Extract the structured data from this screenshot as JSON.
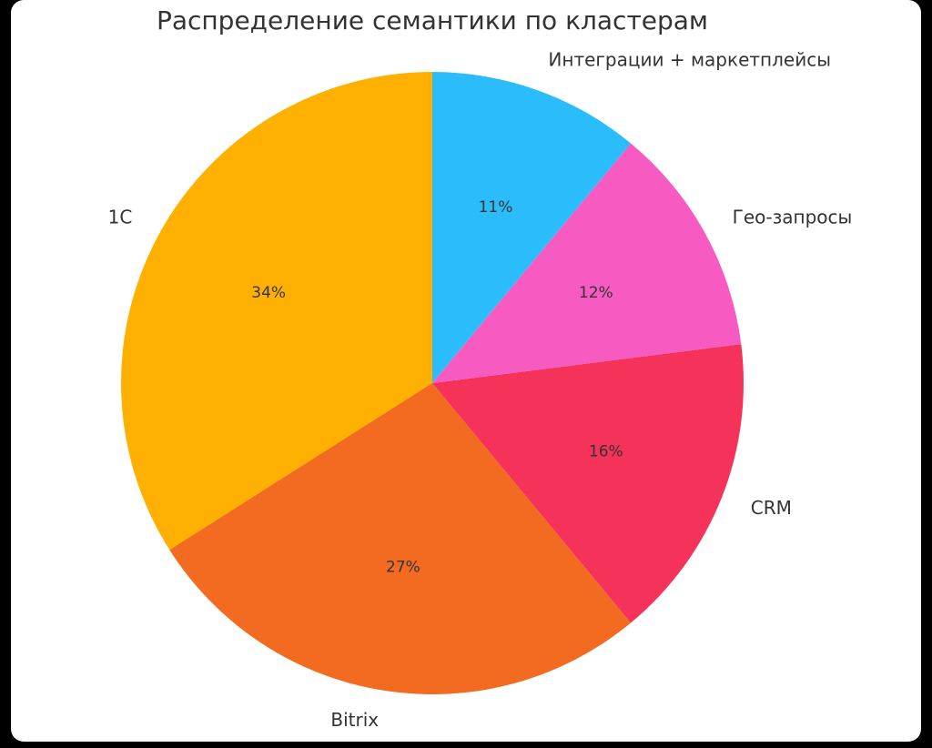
{
  "chart_data": {
    "type": "pie",
    "title": "Распределение семантики по кластерам",
    "categories": [
      "1C",
      "Bitrix",
      "CRM",
      "Гео-запросы",
      "Интеграции + маркетплейсы"
    ],
    "values": [
      34,
      27,
      16,
      12,
      11
    ],
    "value_labels": [
      "34%",
      "27%",
      "16%",
      "12%",
      "11%"
    ],
    "colors": [
      "#ffb000",
      "#f26b21",
      "#f5335a",
      "#f75bc2",
      "#2bbdfb"
    ]
  }
}
